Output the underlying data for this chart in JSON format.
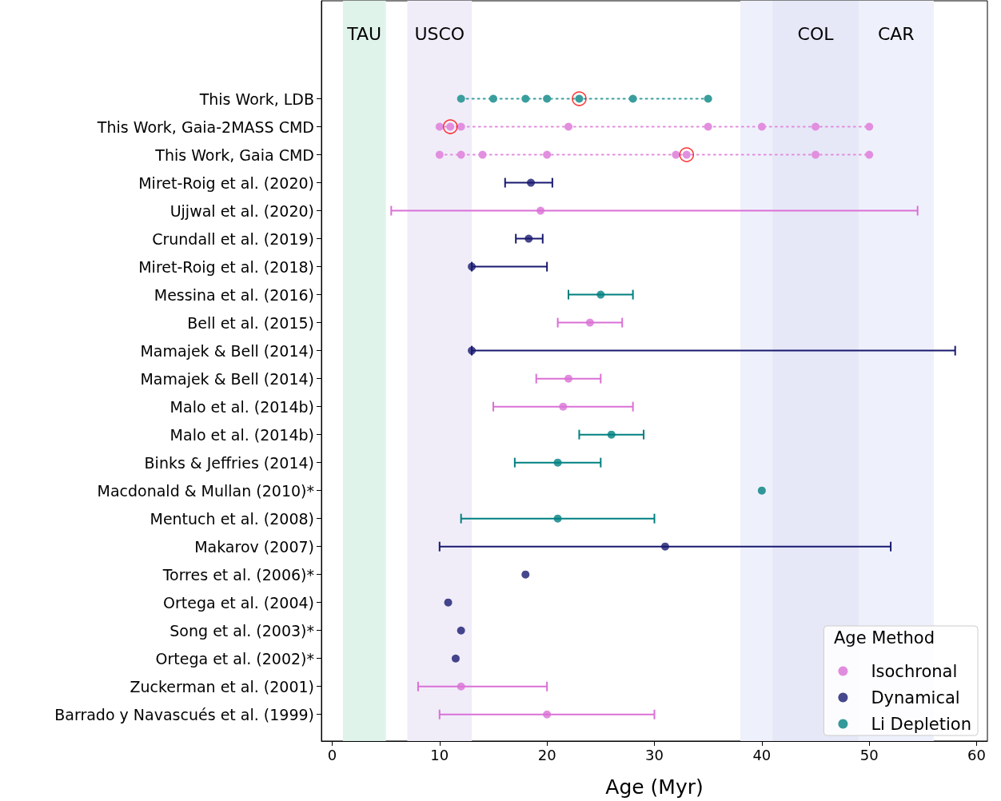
{
  "chart_data": {
    "type": "scatter",
    "orientation": "horizontal",
    "xlabel": "Age (Myr)",
    "legend_title": "Age Method",
    "legend": "bottom right",
    "grid": false,
    "marker": "circle",
    "categories": [
      "This Work, LDB",
      "This Work, Gaia-2MASS CMD",
      "This Work, Gaia CMD",
      "Miret-Roig et al. (2020)",
      "Ujjwal et al. (2020)",
      "Crundall et al. (2019)",
      "Miret-Roig et al. (2018)",
      "Messina et al. (2016)",
      "Bell et al. (2015)",
      "Mamajek & Bell (2014)",
      "Mamajek & Bell (2014)",
      "Malo et al. (2014b)",
      "Malo et al. (2014b)",
      "Binks & Jeffries (2014)",
      "Macdonald & Mullan (2010)*",
      "Mentuch et al. (2008)",
      "Makarov (2007)",
      "Torres et al. (2006)*",
      "Ortega et al. (2004)",
      "Song et al. (2003)*",
      "Ortega et al. (2002)*",
      "Zuckerman et al. (2001)",
      "Barrado y Navascués et al. (1999)"
    ],
    "xlim": [
      -1,
      61
    ],
    "xticks": [
      0,
      10,
      20,
      30,
      40,
      50,
      60
    ],
    "bands": [
      {
        "axis": "x",
        "from": 1,
        "to": 5,
        "label": "TAU",
        "color": "#dff3ea"
      },
      {
        "axis": "x",
        "from": 7,
        "to": 13,
        "label": "USCO",
        "color": "#f0edf9"
      },
      {
        "axis": "x",
        "from": 38,
        "to": 56,
        "color": "#eef1fb"
      },
      {
        "axis": "x",
        "from": 41,
        "to": 49,
        "label": "COL",
        "color": "#e6e8f7"
      },
      {
        "axis": "x",
        "from": 49,
        "to": 56,
        "label": "CAR",
        "color": "#eef1fb"
      }
    ],
    "series": [
      {
        "name": "Isochronal",
        "color": "#da70d6",
        "values": [
          null,
          null,
          null,
          null,
          19.4,
          null,
          null,
          null,
          24,
          null,
          22,
          21.5,
          null,
          null,
          null,
          null,
          null,
          null,
          null,
          null,
          null,
          12,
          20
        ],
        "errors": [
          null,
          null,
          null,
          null,
          [
            5.5,
            54.5
          ],
          null,
          null,
          null,
          [
            21,
            27
          ],
          null,
          [
            19,
            25
          ],
          [
            15,
            28
          ],
          null,
          null,
          null,
          null,
          null,
          null,
          null,
          null,
          null,
          [
            8,
            20
          ],
          [
            10,
            30
          ]
        ]
      },
      {
        "name": "Dynamical",
        "color": "#191970",
        "values": [
          null,
          null,
          null,
          18.5,
          null,
          18.3,
          13,
          null,
          null,
          13,
          null,
          null,
          null,
          null,
          null,
          null,
          31,
          18,
          10.8,
          12,
          11.5,
          null,
          null
        ],
        "errors": [
          null,
          null,
          null,
          [
            16.1,
            20.5
          ],
          null,
          [
            17.1,
            19.6
          ],
          [
            13,
            20
          ],
          null,
          null,
          [
            13,
            58
          ],
          null,
          null,
          null,
          null,
          null,
          null,
          [
            10,
            52
          ],
          null,
          null,
          null,
          null,
          null,
          null
        ]
      },
      {
        "name": "Li Depletion",
        "color": "#008080",
        "values": [
          null,
          null,
          null,
          null,
          null,
          null,
          null,
          25,
          null,
          null,
          null,
          null,
          26,
          21,
          40,
          21,
          null,
          null,
          null,
          null,
          null,
          null,
          null
        ],
        "errors": [
          null,
          null,
          null,
          null,
          null,
          null,
          null,
          [
            22,
            28
          ],
          null,
          null,
          null,
          null,
          [
            23,
            29
          ],
          [
            17,
            25
          ],
          null,
          [
            12,
            30
          ],
          null,
          null,
          null,
          null,
          null,
          null,
          null
        ]
      },
      {
        "type": "line",
        "line_style": "dotted",
        "color": "#3a9e9d",
        "x": [
          "This Work, LDB",
          "This Work, LDB",
          "This Work, LDB",
          "This Work, LDB",
          "This Work, LDB",
          "This Work, LDB",
          "This Work, LDB"
        ],
        "values": [
          12,
          15,
          18,
          20,
          23,
          28,
          35
        ]
      },
      {
        "type": "line",
        "line_style": "dotted",
        "color": "#e28fdf",
        "x": [
          "This Work, Gaia-2MASS CMD",
          "This Work, Gaia-2MASS CMD",
          "This Work, Gaia-2MASS CMD",
          "This Work, Gaia-2MASS CMD",
          "This Work, Gaia-2MASS CMD",
          "This Work, Gaia-2MASS CMD",
          "This Work, Gaia-2MASS CMD",
          "This Work, Gaia-2MASS CMD"
        ],
        "values": [
          10,
          11,
          12,
          22,
          35,
          40,
          45,
          50
        ]
      },
      {
        "type": "line",
        "line_style": "dotted",
        "color": "#e28fdf",
        "x": [
          "This Work, Gaia CMD",
          "This Work, Gaia CMD",
          "This Work, Gaia CMD",
          "This Work, Gaia CMD",
          "This Work, Gaia CMD",
          "This Work, Gaia CMD",
          "This Work, Gaia CMD",
          "This Work, Gaia CMD"
        ],
        "values": [
          10,
          12,
          14,
          20,
          32,
          33,
          45,
          50
        ]
      },
      {
        "type": "scatter",
        "marker": "circle",
        "color": "#ff0000",
        "x": [
          "This Work, LDB",
          "This Work, Gaia-2MASS CMD",
          "This Work, Gaia CMD"
        ],
        "values": [
          23,
          11,
          33
        ]
      }
    ]
  }
}
